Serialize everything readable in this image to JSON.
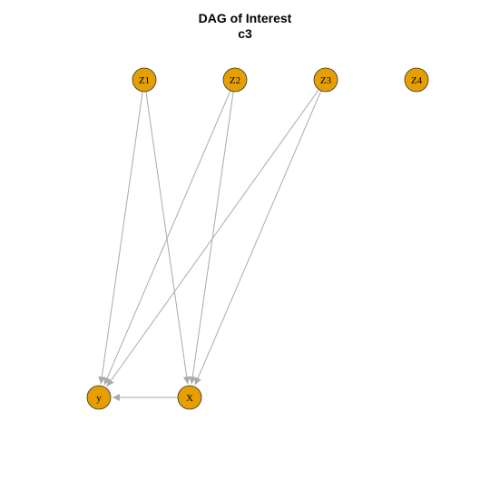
{
  "title": {
    "line1": "DAG of Interest",
    "line2": "c3"
  },
  "colors": {
    "node_fill": "#E69F00",
    "node_stroke": "#333333",
    "edge": "#aaaaaa"
  },
  "nodes": [
    {
      "id": "Z1",
      "label": "Z1"
    },
    {
      "id": "Z2",
      "label": "Z2"
    },
    {
      "id": "Z3",
      "label": "Z3"
    },
    {
      "id": "Z4",
      "label": "Z4"
    },
    {
      "id": "y",
      "label": "y"
    },
    {
      "id": "X",
      "label": "X"
    }
  ],
  "edges": [
    {
      "from": "Z1",
      "to": "y"
    },
    {
      "from": "Z1",
      "to": "X"
    },
    {
      "from": "Z2",
      "to": "y"
    },
    {
      "from": "Z2",
      "to": "X"
    },
    {
      "from": "Z3",
      "to": "y"
    },
    {
      "from": "Z3",
      "to": "X"
    },
    {
      "from": "X",
      "to": "y"
    }
  ]
}
